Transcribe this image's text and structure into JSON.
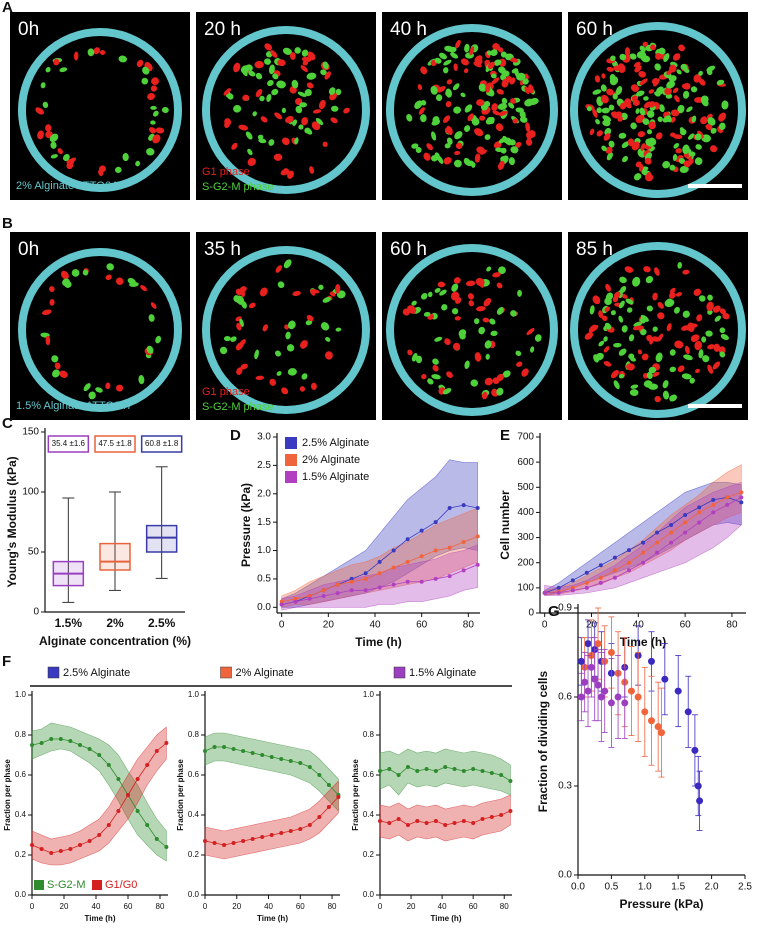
{
  "panel_a": {
    "label": "A",
    "times": [
      "0h",
      "20 h",
      "40 h",
      "60 h"
    ],
    "stain": "2% Alginate ATTO647",
    "g1": "G1 phase",
    "sg2m": "S-G2-M phase"
  },
  "panel_b": {
    "label": "B",
    "times": [
      "0h",
      "35 h",
      "60 h",
      "85 h"
    ],
    "stain": "1.5% Alginate ATTO647",
    "g1": "G1 phase",
    "sg2m": "S-G2-M phase"
  },
  "chart_data": [
    {
      "type": "box",
      "panel": "C",
      "ylabel": "Young's Modulus (kPa)",
      "xlabel": "Alginate concentration (%)",
      "categories": [
        "1.5%",
        "2%",
        "2.5%"
      ],
      "colors": [
        "#9b3fc0",
        "#e8643c",
        "#3a3aa8"
      ],
      "stats": [
        {
          "min": 8,
          "q1": 22,
          "median": 32,
          "q3": 42,
          "max": 95
        },
        {
          "min": 18,
          "q1": 35,
          "median": 42,
          "q3": 57,
          "max": 100
        },
        {
          "min": 28,
          "q1": 50,
          "median": 62,
          "q3": 72,
          "max": 121
        }
      ],
      "annotations": [
        "35.4 ±1.6",
        "47.5 ±1.8",
        "60.8 ±1.8"
      ],
      "ylim": [
        0,
        150
      ],
      "yticks": [
        0,
        50,
        100,
        150
      ]
    },
    {
      "type": "line",
      "panel": "D",
      "ylabel": "Pressure (kPa)",
      "xlabel": "Time (h)",
      "legend": "upper left",
      "xlim": [
        -2,
        85
      ],
      "ylim": [
        -0.1,
        3
      ],
      "xticks": [
        0,
        20,
        40,
        60,
        80
      ],
      "yticks": [
        {
          "value": 0,
          "label": "0.0"
        },
        0.5,
        {
          "value": 1,
          "label": "1.0"
        },
        1.5,
        {
          "value": 2,
          "label": "2.0"
        },
        2.5,
        {
          "value": 3,
          "label": "3.0"
        }
      ],
      "x": [
        0,
        6,
        12,
        18,
        24,
        30,
        36,
        42,
        48,
        54,
        60,
        66,
        72,
        78,
        84
      ],
      "series": [
        {
          "name": "2.5% Alginate",
          "color": "#3a3ac0",
          "values": [
            0.05,
            0.1,
            0.2,
            0.3,
            0.4,
            0.5,
            0.6,
            0.8,
            1.0,
            1.2,
            1.35,
            1.5,
            1.75,
            1.8,
            1.75
          ],
          "lower": [
            0,
            0,
            0.05,
            0.1,
            0.15,
            0.2,
            0.25,
            0.35,
            0.45,
            0.6,
            0.75,
            0.9,
            1.0,
            1.05,
            1.0
          ],
          "upper": [
            0.15,
            0.25,
            0.4,
            0.55,
            0.7,
            0.85,
            1.0,
            1.3,
            1.6,
            1.9,
            2.1,
            2.3,
            2.6,
            2.55,
            2.55
          ]
        },
        {
          "name": "2% Alginate",
          "color": "#f0643c",
          "values": [
            0.1,
            0.15,
            0.2,
            0.3,
            0.4,
            0.45,
            0.5,
            0.6,
            0.7,
            0.8,
            0.9,
            1.0,
            1.05,
            1.15,
            1.25
          ],
          "lower": [
            0,
            0.05,
            0.05,
            0.1,
            0.15,
            0.2,
            0.25,
            0.3,
            0.35,
            0.4,
            0.45,
            0.5,
            0.6,
            0.7,
            0.8
          ],
          "upper": [
            0.2,
            0.3,
            0.45,
            0.55,
            0.65,
            0.75,
            0.8,
            0.9,
            1.05,
            1.15,
            1.3,
            1.45,
            1.55,
            1.65,
            1.75
          ]
        },
        {
          "name": "1.5% Alginate",
          "color": "#b040c0",
          "values": [
            0.05,
            0.1,
            0.15,
            0.2,
            0.25,
            0.3,
            0.3,
            0.35,
            0.4,
            0.45,
            0.45,
            0.5,
            0.55,
            0.65,
            0.75
          ],
          "lower": [
            -0.05,
            0,
            0,
            0,
            0,
            0,
            0,
            0.05,
            0.05,
            0.1,
            0.1,
            0.15,
            0.2,
            0.3,
            0.35
          ],
          "upper": [
            0.15,
            0.2,
            0.3,
            0.4,
            0.45,
            0.5,
            0.55,
            0.6,
            0.7,
            0.75,
            0.8,
            0.85,
            0.95,
            1.0,
            1.1
          ]
        }
      ]
    },
    {
      "type": "line",
      "panel": "E",
      "ylabel": "Cell number",
      "xlabel": "Time (h)",
      "xlim": [
        -2,
        86
      ],
      "ylim": [
        0,
        700
      ],
      "xticks": [
        0,
        20,
        40,
        60,
        80
      ],
      "yticks": [
        0,
        100,
        200,
        300,
        400,
        500,
        600,
        700
      ],
      "x": [
        0,
        6,
        12,
        18,
        24,
        30,
        36,
        42,
        48,
        54,
        60,
        66,
        72,
        78,
        84
      ],
      "series": [
        {
          "color": "#3a3ac0",
          "values": [
            80,
            100,
            130,
            160,
            190,
            220,
            250,
            280,
            320,
            350,
            390,
            420,
            450,
            460,
            440
          ],
          "lower": [
            70,
            80,
            100,
            120,
            140,
            160,
            180,
            200,
            230,
            260,
            290,
            320,
            350,
            360,
            350
          ],
          "upper": [
            90,
            120,
            160,
            200,
            240,
            280,
            320,
            360,
            400,
            440,
            480,
            500,
            520,
            520,
            510
          ]
        },
        {
          "color": "#f0643c",
          "values": [
            80,
            85,
            100,
            120,
            140,
            170,
            200,
            240,
            280,
            320,
            360,
            400,
            430,
            460,
            480
          ],
          "lower": [
            70,
            75,
            85,
            100,
            115,
            140,
            160,
            190,
            220,
            250,
            290,
            320,
            350,
            380,
            400
          ],
          "upper": [
            90,
            100,
            120,
            150,
            180,
            210,
            250,
            290,
            340,
            390,
            430,
            470,
            520,
            560,
            590
          ]
        },
        {
          "color": "#b040c0",
          "values": [
            80,
            80,
            90,
            100,
            120,
            140,
            170,
            200,
            240,
            280,
            320,
            360,
            400,
            430,
            460
          ],
          "lower": [
            70,
            70,
            75,
            80,
            90,
            100,
            120,
            140,
            160,
            180,
            200,
            230,
            260,
            300,
            350
          ],
          "upper": [
            110,
            100,
            110,
            130,
            160,
            190,
            230,
            270,
            320,
            370,
            420,
            450,
            480,
            500,
            520
          ]
        }
      ]
    },
    {
      "type": "line",
      "panel": "F",
      "title": "2.5% Alginate",
      "title_color": "#3a3ac0",
      "ylabel": "Fraction per phase",
      "xlabel": "Time (h)",
      "legend": "lower left",
      "xlim": [
        0,
        85
      ],
      "ylim": [
        0,
        1
      ],
      "xticks": [
        0,
        20,
        40,
        60,
        80
      ],
      "yticks": [
        {
          "value": 0,
          "label": "0.0"
        },
        0.2,
        0.4,
        0.6,
        0.8,
        {
          "value": 1,
          "label": "1.0"
        }
      ],
      "x": [
        0,
        6,
        12,
        18,
        24,
        30,
        36,
        42,
        48,
        54,
        60,
        66,
        72,
        78,
        84
      ],
      "series": [
        {
          "name": "S-G2-M",
          "color": "#2e8b2e",
          "values": [
            0.75,
            0.76,
            0.78,
            0.78,
            0.77,
            0.75,
            0.73,
            0.7,
            0.65,
            0.58,
            0.5,
            0.42,
            0.35,
            0.28,
            0.24
          ],
          "lower": [
            0.68,
            0.7,
            0.72,
            0.73,
            0.72,
            0.69,
            0.66,
            0.62,
            0.55,
            0.47,
            0.38,
            0.3,
            0.25,
            0.2,
            0.17
          ],
          "upper": [
            0.82,
            0.83,
            0.86,
            0.85,
            0.84,
            0.82,
            0.8,
            0.78,
            0.75,
            0.7,
            0.62,
            0.55,
            0.46,
            0.38,
            0.32
          ]
        },
        {
          "name": "G1/G0",
          "color": "#d42020",
          "values": [
            0.25,
            0.23,
            0.21,
            0.22,
            0.23,
            0.25,
            0.27,
            0.3,
            0.35,
            0.42,
            0.5,
            0.58,
            0.65,
            0.72,
            0.76
          ],
          "lower": [
            0.18,
            0.16,
            0.15,
            0.15,
            0.16,
            0.18,
            0.2,
            0.22,
            0.26,
            0.32,
            0.38,
            0.46,
            0.55,
            0.62,
            0.68
          ],
          "upper": [
            0.32,
            0.3,
            0.28,
            0.29,
            0.3,
            0.32,
            0.35,
            0.38,
            0.44,
            0.52,
            0.6,
            0.68,
            0.74,
            0.8,
            0.84
          ]
        }
      ]
    },
    {
      "type": "line",
      "title": "2% Alginate",
      "title_color": "#f0643c",
      "ylabel": "Fraction per phase",
      "xlabel": "Time (h)",
      "xlim": [
        0,
        85
      ],
      "ylim": [
        0,
        1
      ],
      "xticks": [
        0,
        20,
        40,
        60,
        80
      ],
      "yticks": [
        {
          "value": 0,
          "label": "0.0"
        },
        0.2,
        0.4,
        0.6,
        0.8,
        {
          "value": 1,
          "label": "1.0"
        }
      ],
      "x": [
        0,
        6,
        12,
        18,
        24,
        30,
        36,
        42,
        48,
        54,
        60,
        66,
        72,
        78,
        84
      ],
      "series": [
        {
          "color": "#2e8b2e",
          "values": [
            0.72,
            0.74,
            0.74,
            0.73,
            0.72,
            0.71,
            0.7,
            0.69,
            0.68,
            0.67,
            0.66,
            0.64,
            0.6,
            0.55,
            0.5
          ],
          "lower": [
            0.65,
            0.67,
            0.67,
            0.66,
            0.65,
            0.64,
            0.63,
            0.62,
            0.61,
            0.6,
            0.58,
            0.56,
            0.52,
            0.47,
            0.42
          ],
          "upper": [
            0.79,
            0.81,
            0.81,
            0.8,
            0.79,
            0.78,
            0.77,
            0.76,
            0.75,
            0.74,
            0.73,
            0.72,
            0.68,
            0.63,
            0.58
          ]
        },
        {
          "color": "#d42020",
          "values": [
            0.27,
            0.26,
            0.25,
            0.26,
            0.27,
            0.28,
            0.29,
            0.3,
            0.31,
            0.32,
            0.33,
            0.35,
            0.39,
            0.44,
            0.49
          ],
          "lower": [
            0.2,
            0.19,
            0.18,
            0.19,
            0.2,
            0.21,
            0.22,
            0.23,
            0.24,
            0.25,
            0.26,
            0.28,
            0.31,
            0.36,
            0.41
          ],
          "upper": [
            0.34,
            0.33,
            0.32,
            0.33,
            0.34,
            0.35,
            0.36,
            0.37,
            0.38,
            0.39,
            0.41,
            0.43,
            0.47,
            0.52,
            0.57
          ]
        }
      ]
    },
    {
      "type": "line",
      "title": "1.5% Alginate",
      "title_color": "#9b3fc0",
      "ylabel": "Fraction per phase",
      "xlabel": "Time (h)",
      "xlim": [
        0,
        85
      ],
      "ylim": [
        0,
        1
      ],
      "xticks": [
        0,
        20,
        40,
        60,
        80
      ],
      "yticks": [
        {
          "value": 0,
          "label": "0.0"
        },
        0.2,
        0.4,
        0.6,
        0.8,
        {
          "value": 1,
          "label": "1.0"
        }
      ],
      "x": [
        0,
        6,
        12,
        18,
        24,
        30,
        36,
        42,
        48,
        54,
        60,
        66,
        72,
        78,
        84
      ],
      "series": [
        {
          "color": "#2e8b2e",
          "values": [
            0.62,
            0.63,
            0.6,
            0.64,
            0.62,
            0.63,
            0.62,
            0.64,
            0.63,
            0.62,
            0.63,
            0.62,
            0.61,
            0.6,
            0.57
          ],
          "lower": [
            0.53,
            0.55,
            0.5,
            0.56,
            0.54,
            0.55,
            0.54,
            0.56,
            0.55,
            0.54,
            0.55,
            0.54,
            0.53,
            0.52,
            0.5
          ],
          "upper": [
            0.71,
            0.72,
            0.7,
            0.73,
            0.71,
            0.72,
            0.71,
            0.73,
            0.72,
            0.71,
            0.72,
            0.71,
            0.7,
            0.68,
            0.65
          ]
        },
        {
          "color": "#d42020",
          "values": [
            0.37,
            0.36,
            0.38,
            0.35,
            0.37,
            0.36,
            0.37,
            0.35,
            0.36,
            0.37,
            0.36,
            0.38,
            0.39,
            0.4,
            0.42
          ],
          "lower": [
            0.29,
            0.28,
            0.3,
            0.27,
            0.29,
            0.28,
            0.29,
            0.27,
            0.28,
            0.29,
            0.28,
            0.3,
            0.31,
            0.32,
            0.35
          ],
          "upper": [
            0.45,
            0.44,
            0.46,
            0.43,
            0.45,
            0.44,
            0.45,
            0.43,
            0.44,
            0.45,
            0.44,
            0.46,
            0.47,
            0.48,
            0.5
          ]
        }
      ]
    },
    {
      "type": "scatter",
      "panel": "G",
      "ylabel": "Fraction of dividing cells",
      "xlabel": "Pressure (kPa)",
      "xlim": [
        0,
        2.5
      ],
      "ylim": [
        0,
        0.9
      ],
      "xticks": [
        {
          "value": 0,
          "label": "0.0"
        },
        0.5,
        {
          "value": 1,
          "label": "1.0"
        },
        1.5,
        {
          "value": 2,
          "label": "2.0"
        },
        2.5
      ],
      "yticks": [
        {
          "value": 0,
          "label": "0.0"
        },
        0.3,
        0.6,
        0.9
      ],
      "series": [
        {
          "color": "#3a2ac0",
          "x": [
            0.05,
            0.15,
            0.25,
            0.35,
            0.5,
            0.7,
            0.9,
            1.1,
            1.3,
            1.5,
            1.65,
            1.75,
            1.8,
            1.82
          ],
          "values": [
            0.72,
            0.78,
            0.76,
            0.72,
            0.68,
            0.7,
            0.74,
            0.72,
            0.66,
            0.62,
            0.55,
            0.42,
            0.3,
            0.25
          ],
          "errors": [
            0.08,
            0.08,
            0.09,
            0.1,
            0.1,
            0.1,
            0.1,
            0.1,
            0.12,
            0.12,
            0.12,
            0.12,
            0.1,
            0.1
          ]
        },
        {
          "color": "#f0643c",
          "x": [
            0.1,
            0.2,
            0.3,
            0.4,
            0.5,
            0.6,
            0.7,
            0.8,
            0.9,
            1.0,
            1.1,
            1.2,
            1.25
          ],
          "values": [
            0.7,
            0.74,
            0.78,
            0.72,
            0.75,
            0.68,
            0.65,
            0.62,
            0.6,
            0.55,
            0.52,
            0.5,
            0.48
          ],
          "errors": [
            0.1,
            0.12,
            0.12,
            0.12,
            0.12,
            0.14,
            0.15,
            0.15,
            0.15,
            0.15,
            0.15,
            0.15,
            0.15
          ]
        },
        {
          "color": "#9b3fc0",
          "x": [
            0.05,
            0.1,
            0.15,
            0.2,
            0.25,
            0.3,
            0.35,
            0.4,
            0.5,
            0.6,
            0.7
          ],
          "values": [
            0.6,
            0.65,
            0.62,
            0.7,
            0.66,
            0.64,
            0.6,
            0.62,
            0.58,
            0.6,
            0.58
          ],
          "errors": [
            0.08,
            0.1,
            0.12,
            0.1,
            0.14,
            0.12,
            0.15,
            0.14,
            0.15,
            0.14,
            0.12
          ]
        }
      ]
    }
  ]
}
